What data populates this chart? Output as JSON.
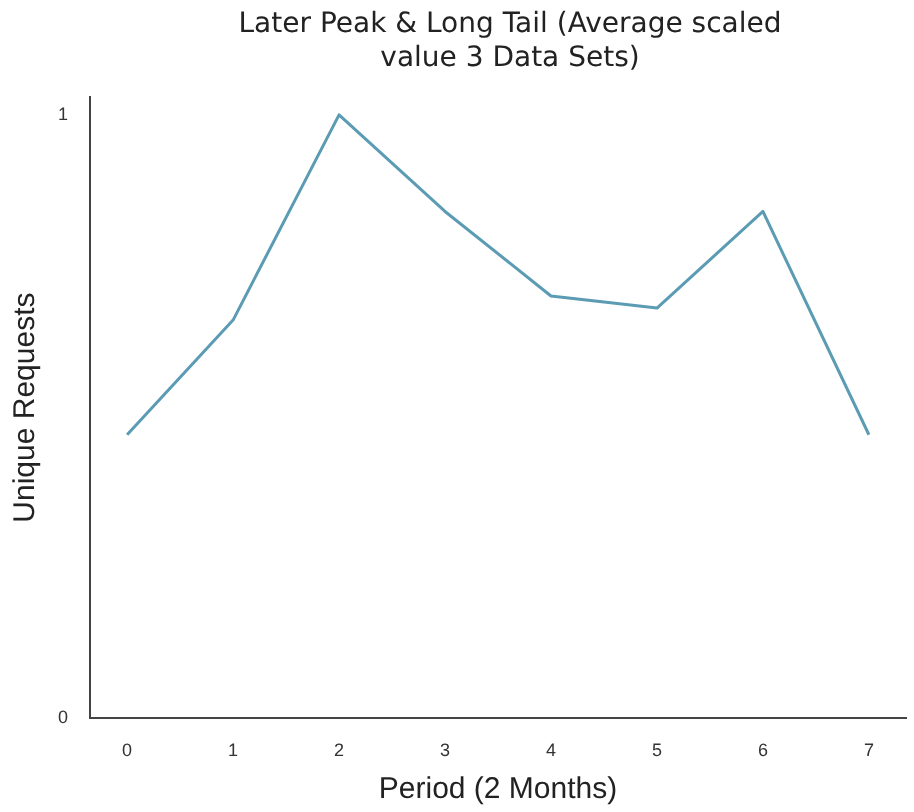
{
  "chart_data": {
    "type": "line",
    "title": "Later Peak & Long Tail (Average scaled value 3 Data Sets)",
    "xlabel": "Period (2 Months)",
    "ylabel": "Unique Requests",
    "x": [
      0,
      1,
      2,
      3,
      4,
      5,
      6,
      7
    ],
    "series": [
      {
        "color": "#5b9bb3",
        "values": [
          0.47,
          0.66,
          1.0,
          0.84,
          0.7,
          0.68,
          0.84,
          0.47
        ]
      }
    ],
    "xlim": [
      -0.35,
      7.35
    ],
    "xticks": [
      0,
      1,
      2,
      3,
      4,
      5,
      6,
      7
    ],
    "ylim": [
      0,
      1.03
    ],
    "yticks": [
      0,
      1
    ],
    "grid": false,
    "legend": false,
    "marker": "none",
    "line_style": "solid"
  }
}
